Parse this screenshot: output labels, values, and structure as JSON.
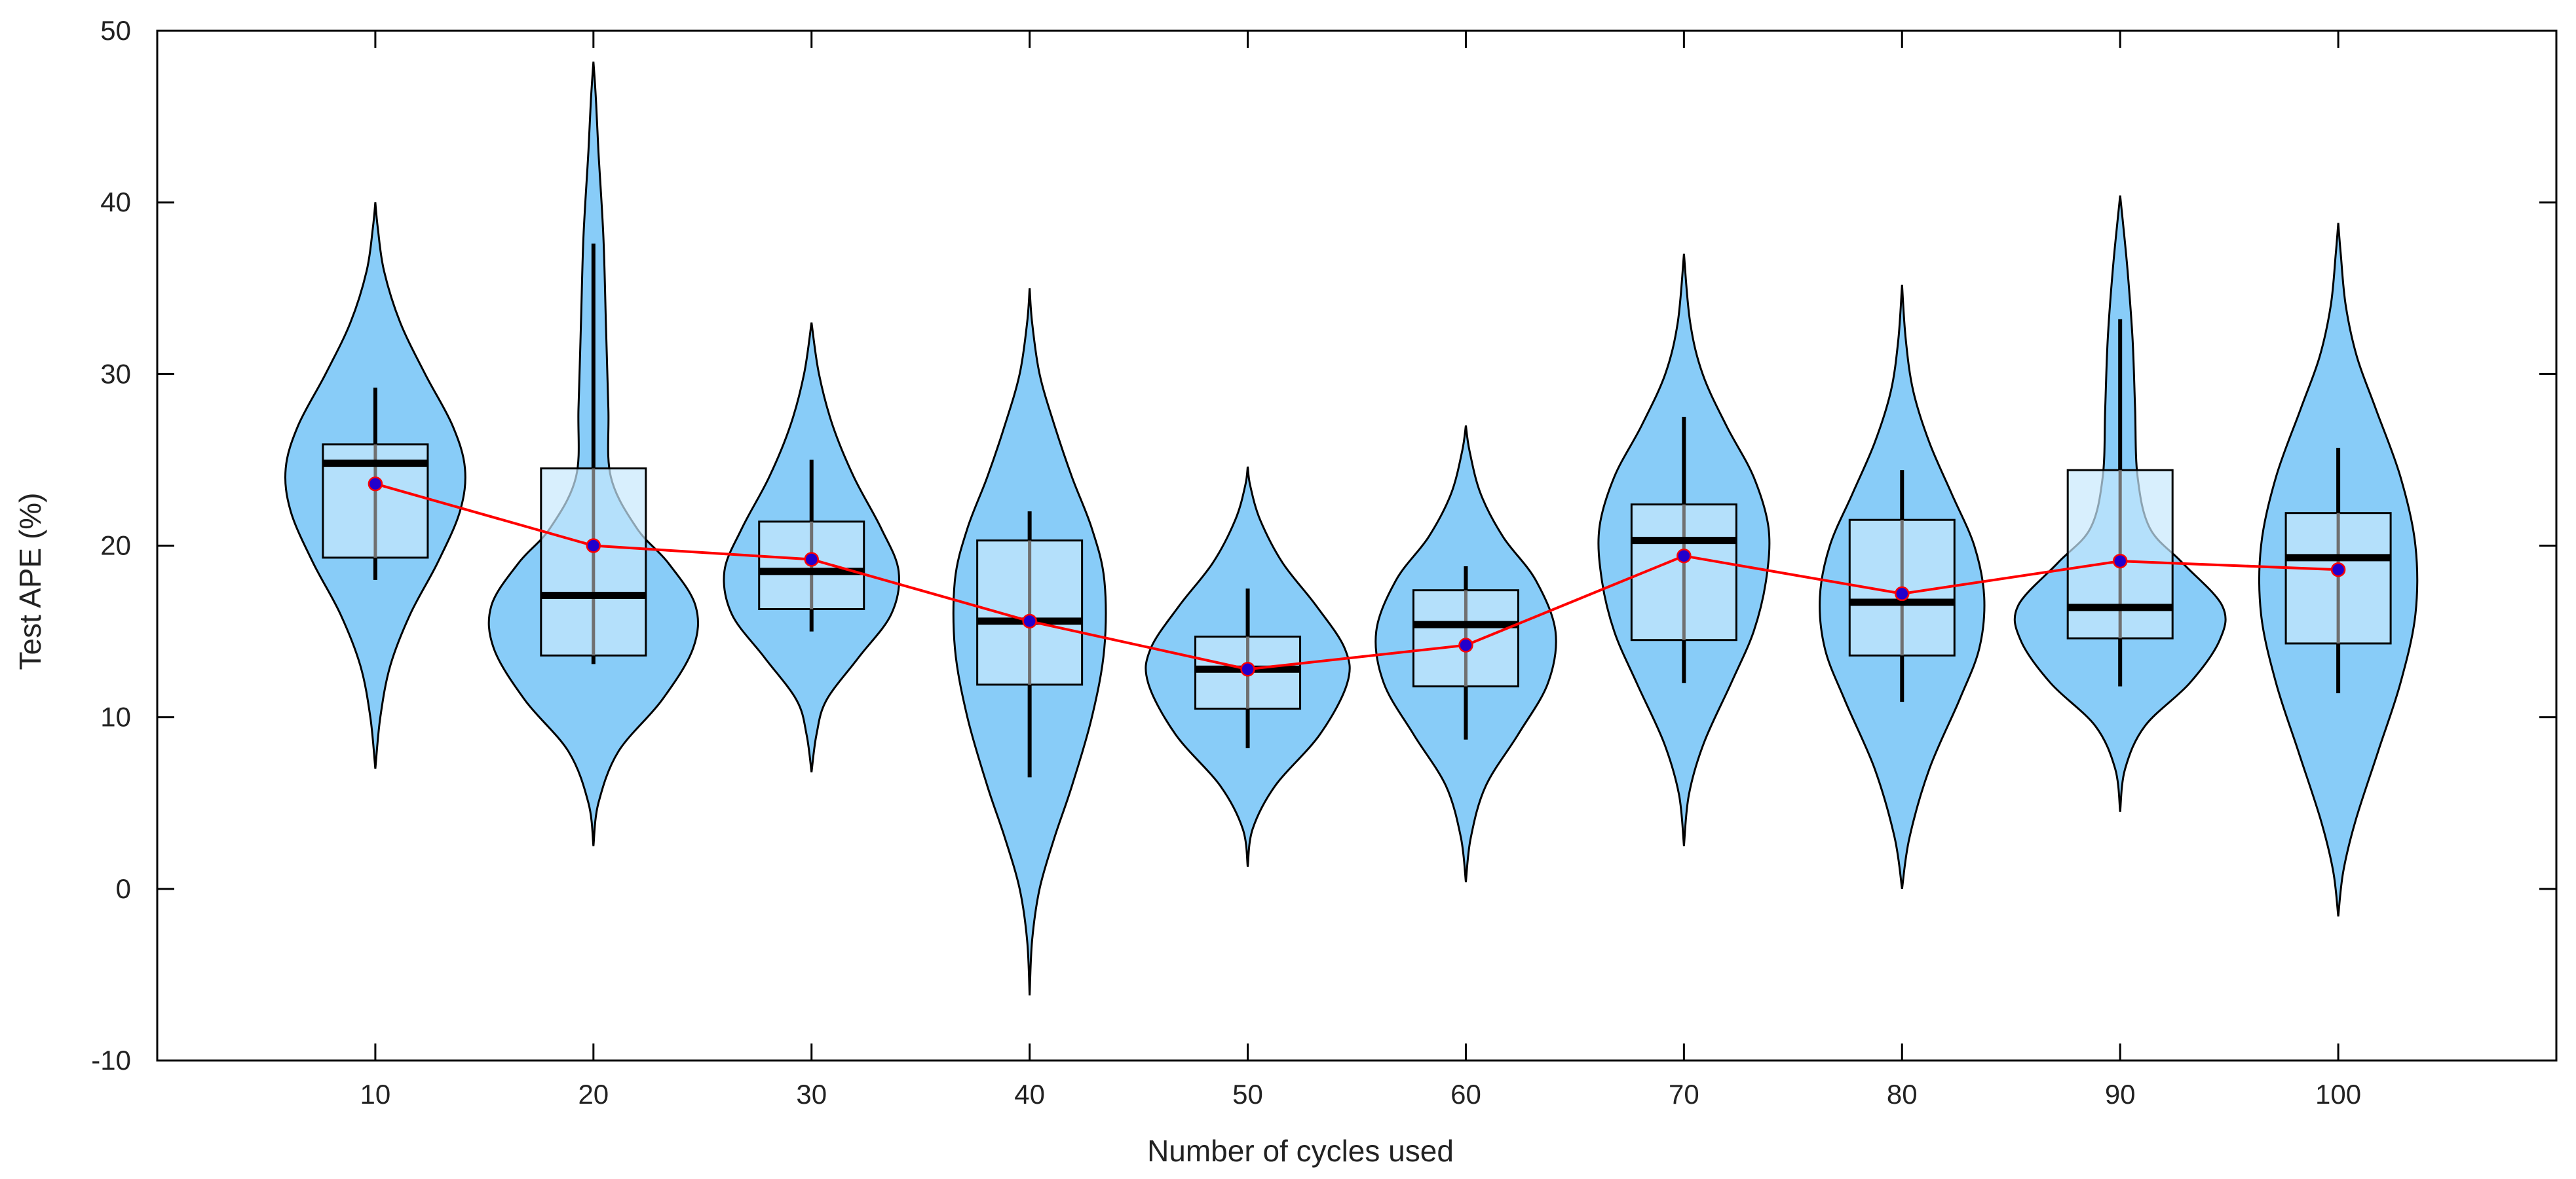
{
  "chart_data": {
    "type": "violin",
    "title": "",
    "xlabel": "Number of cycles used",
    "ylabel": "Test APE (%)",
    "ylim": [
      -10,
      50
    ],
    "yticks": [
      -10,
      0,
      10,
      20,
      30,
      40,
      50
    ],
    "xticks": [
      10,
      20,
      30,
      40,
      50,
      60,
      70,
      80,
      90,
      100
    ],
    "categories": [
      "10",
      "20",
      "30",
      "40",
      "50",
      "60",
      "70",
      "80",
      "90",
      "100"
    ],
    "mean_line": {
      "name": "mean",
      "color": "#ff0000",
      "marker_color": "#2200cc"
    },
    "colors": {
      "violin_fill": "#88ccf8",
      "box_fill": "#c8e8fc",
      "outline": "#000000"
    },
    "series": [
      {
        "x": 10,
        "min": 7,
        "max": 40,
        "q1": 19.3,
        "median": 24.8,
        "q3": 25.9,
        "mean": 23.6,
        "whisker_low": 18,
        "whisker_high": 29.2,
        "profile": [
          [
            7,
            0
          ],
          [
            10,
            0.04
          ],
          [
            13,
            0.12
          ],
          [
            16,
            0.28
          ],
          [
            19,
            0.5
          ],
          [
            22,
            0.68
          ],
          [
            24.5,
            0.72
          ],
          [
            27,
            0.62
          ],
          [
            30,
            0.4
          ],
          [
            33,
            0.2
          ],
          [
            36,
            0.07
          ],
          [
            38.5,
            0.02
          ],
          [
            40,
            0
          ]
        ]
      },
      {
        "x": 20,
        "min": 2.5,
        "max": 48.2,
        "q1": 13.6,
        "median": 17.1,
        "q3": 24.5,
        "mean": 20,
        "whisker_low": 13.1,
        "whisker_high": 37.6,
        "profile": [
          [
            2.5,
            0
          ],
          [
            5,
            0.04
          ],
          [
            8,
            0.2
          ],
          [
            11,
            0.55
          ],
          [
            14,
            0.8
          ],
          [
            16.5,
            0.82
          ],
          [
            19,
            0.6
          ],
          [
            21,
            0.35
          ],
          [
            24,
            0.14
          ],
          [
            28,
            0.12
          ],
          [
            33,
            0.1
          ],
          [
            38,
            0.08
          ],
          [
            43,
            0.04
          ],
          [
            46,
            0.02
          ],
          [
            48.2,
            0
          ]
        ]
      },
      {
        "x": 30,
        "min": 6.8,
        "max": 33,
        "q1": 16.3,
        "median": 18.5,
        "q3": 21.4,
        "mean": 19.2,
        "whisker_low": 15,
        "whisker_high": 25,
        "profile": [
          [
            6.8,
            0
          ],
          [
            9,
            0.04
          ],
          [
            11,
            0.12
          ],
          [
            13.5,
            0.38
          ],
          [
            16,
            0.64
          ],
          [
            18.5,
            0.7
          ],
          [
            21,
            0.56
          ],
          [
            24,
            0.34
          ],
          [
            27,
            0.17
          ],
          [
            30,
            0.06
          ],
          [
            33,
            0
          ]
        ]
      },
      {
        "x": 40,
        "min": -6.2,
        "max": 35,
        "q1": 11.9,
        "median": 15.6,
        "q3": 20.3,
        "mean": 15.6,
        "whisker_low": 6.5,
        "whisker_high": 22,
        "profile": [
          [
            -6.2,
            0
          ],
          [
            -3,
            0.02
          ],
          [
            0,
            0.08
          ],
          [
            3,
            0.2
          ],
          [
            6,
            0.34
          ],
          [
            10,
            0.5
          ],
          [
            14,
            0.6
          ],
          [
            18,
            0.6
          ],
          [
            21,
            0.5
          ],
          [
            24,
            0.34
          ],
          [
            27,
            0.2
          ],
          [
            30,
            0.08
          ],
          [
            33,
            0.02
          ],
          [
            35,
            0
          ]
        ]
      },
      {
        "x": 50,
        "min": 1.3,
        "max": 24.6,
        "q1": 10.5,
        "median": 12.8,
        "q3": 14.7,
        "mean": 12.8,
        "whisker_low": 8.2,
        "whisker_high": 17.5,
        "profile": [
          [
            1.3,
            0
          ],
          [
            3.5,
            0.04
          ],
          [
            6,
            0.22
          ],
          [
            9,
            0.58
          ],
          [
            12,
            0.8
          ],
          [
            14,
            0.78
          ],
          [
            16.5,
            0.55
          ],
          [
            19,
            0.28
          ],
          [
            21.5,
            0.1
          ],
          [
            23.5,
            0.02
          ],
          [
            24.6,
            0
          ]
        ]
      },
      {
        "x": 60,
        "min": 0.4,
        "max": 27,
        "q1": 11.8,
        "median": 15.4,
        "q3": 17.4,
        "mean": 14.2,
        "whisker_low": 8.7,
        "whisker_high": 18.8,
        "profile": [
          [
            0.4,
            0
          ],
          [
            3,
            0.04
          ],
          [
            6,
            0.16
          ],
          [
            9,
            0.42
          ],
          [
            12,
            0.66
          ],
          [
            15,
            0.72
          ],
          [
            18,
            0.56
          ],
          [
            20.5,
            0.3
          ],
          [
            23,
            0.12
          ],
          [
            25.5,
            0.03
          ],
          [
            27,
            0
          ]
        ]
      },
      {
        "x": 70,
        "min": 2.5,
        "max": 37,
        "q1": 14.5,
        "median": 20.3,
        "q3": 22.4,
        "mean": 19.4,
        "whisker_low": 12,
        "whisker_high": 27.5,
        "profile": [
          [
            2.5,
            0
          ],
          [
            5.5,
            0.04
          ],
          [
            8.5,
            0.16
          ],
          [
            12,
            0.38
          ],
          [
            15,
            0.56
          ],
          [
            18,
            0.66
          ],
          [
            21,
            0.68
          ],
          [
            24,
            0.56
          ],
          [
            27,
            0.34
          ],
          [
            30,
            0.15
          ],
          [
            33,
            0.05
          ],
          [
            37,
            0
          ]
        ]
      },
      {
        "x": 80,
        "min": 0,
        "max": 35.2,
        "q1": 13.6,
        "median": 16.7,
        "q3": 21.5,
        "mean": 17.2,
        "whisker_low": 10.9,
        "whisker_high": 24.4,
        "profile": [
          [
            0,
            0
          ],
          [
            3,
            0.06
          ],
          [
            7,
            0.22
          ],
          [
            11,
            0.46
          ],
          [
            14,
            0.62
          ],
          [
            17,
            0.66
          ],
          [
            20,
            0.58
          ],
          [
            23,
            0.4
          ],
          [
            26,
            0.22
          ],
          [
            29,
            0.09
          ],
          [
            32,
            0.03
          ],
          [
            35.2,
            0
          ]
        ]
      },
      {
        "x": 90,
        "min": 4.5,
        "max": 40.4,
        "q1": 14.6,
        "median": 16.4,
        "q3": 24.4,
        "mean": 19.1,
        "whisker_low": 11.8,
        "whisker_high": 33.2,
        "profile": [
          [
            4.5,
            0
          ],
          [
            7,
            0.04
          ],
          [
            9.5,
            0.2
          ],
          [
            12,
            0.56
          ],
          [
            14.5,
            0.8
          ],
          [
            16.5,
            0.82
          ],
          [
            19,
            0.5
          ],
          [
            21,
            0.24
          ],
          [
            24,
            0.14
          ],
          [
            28,
            0.12
          ],
          [
            32,
            0.1
          ],
          [
            36,
            0.06
          ],
          [
            39,
            0.02
          ],
          [
            40.4,
            0
          ]
        ]
      },
      {
        "x": 100,
        "min": -1.6,
        "max": 38.8,
        "q1": 14.3,
        "median": 19.3,
        "q3": 21.9,
        "mean": 18.6,
        "whisker_low": 11.4,
        "whisker_high": 25.7,
        "profile": [
          [
            -1.6,
            0
          ],
          [
            1,
            0.04
          ],
          [
            4,
            0.14
          ],
          [
            8,
            0.32
          ],
          [
            12,
            0.5
          ],
          [
            16,
            0.62
          ],
          [
            20,
            0.62
          ],
          [
            24,
            0.5
          ],
          [
            28,
            0.3
          ],
          [
            31,
            0.15
          ],
          [
            34,
            0.06
          ],
          [
            37,
            0.02
          ],
          [
            38.8,
            0
          ]
        ]
      }
    ]
  }
}
